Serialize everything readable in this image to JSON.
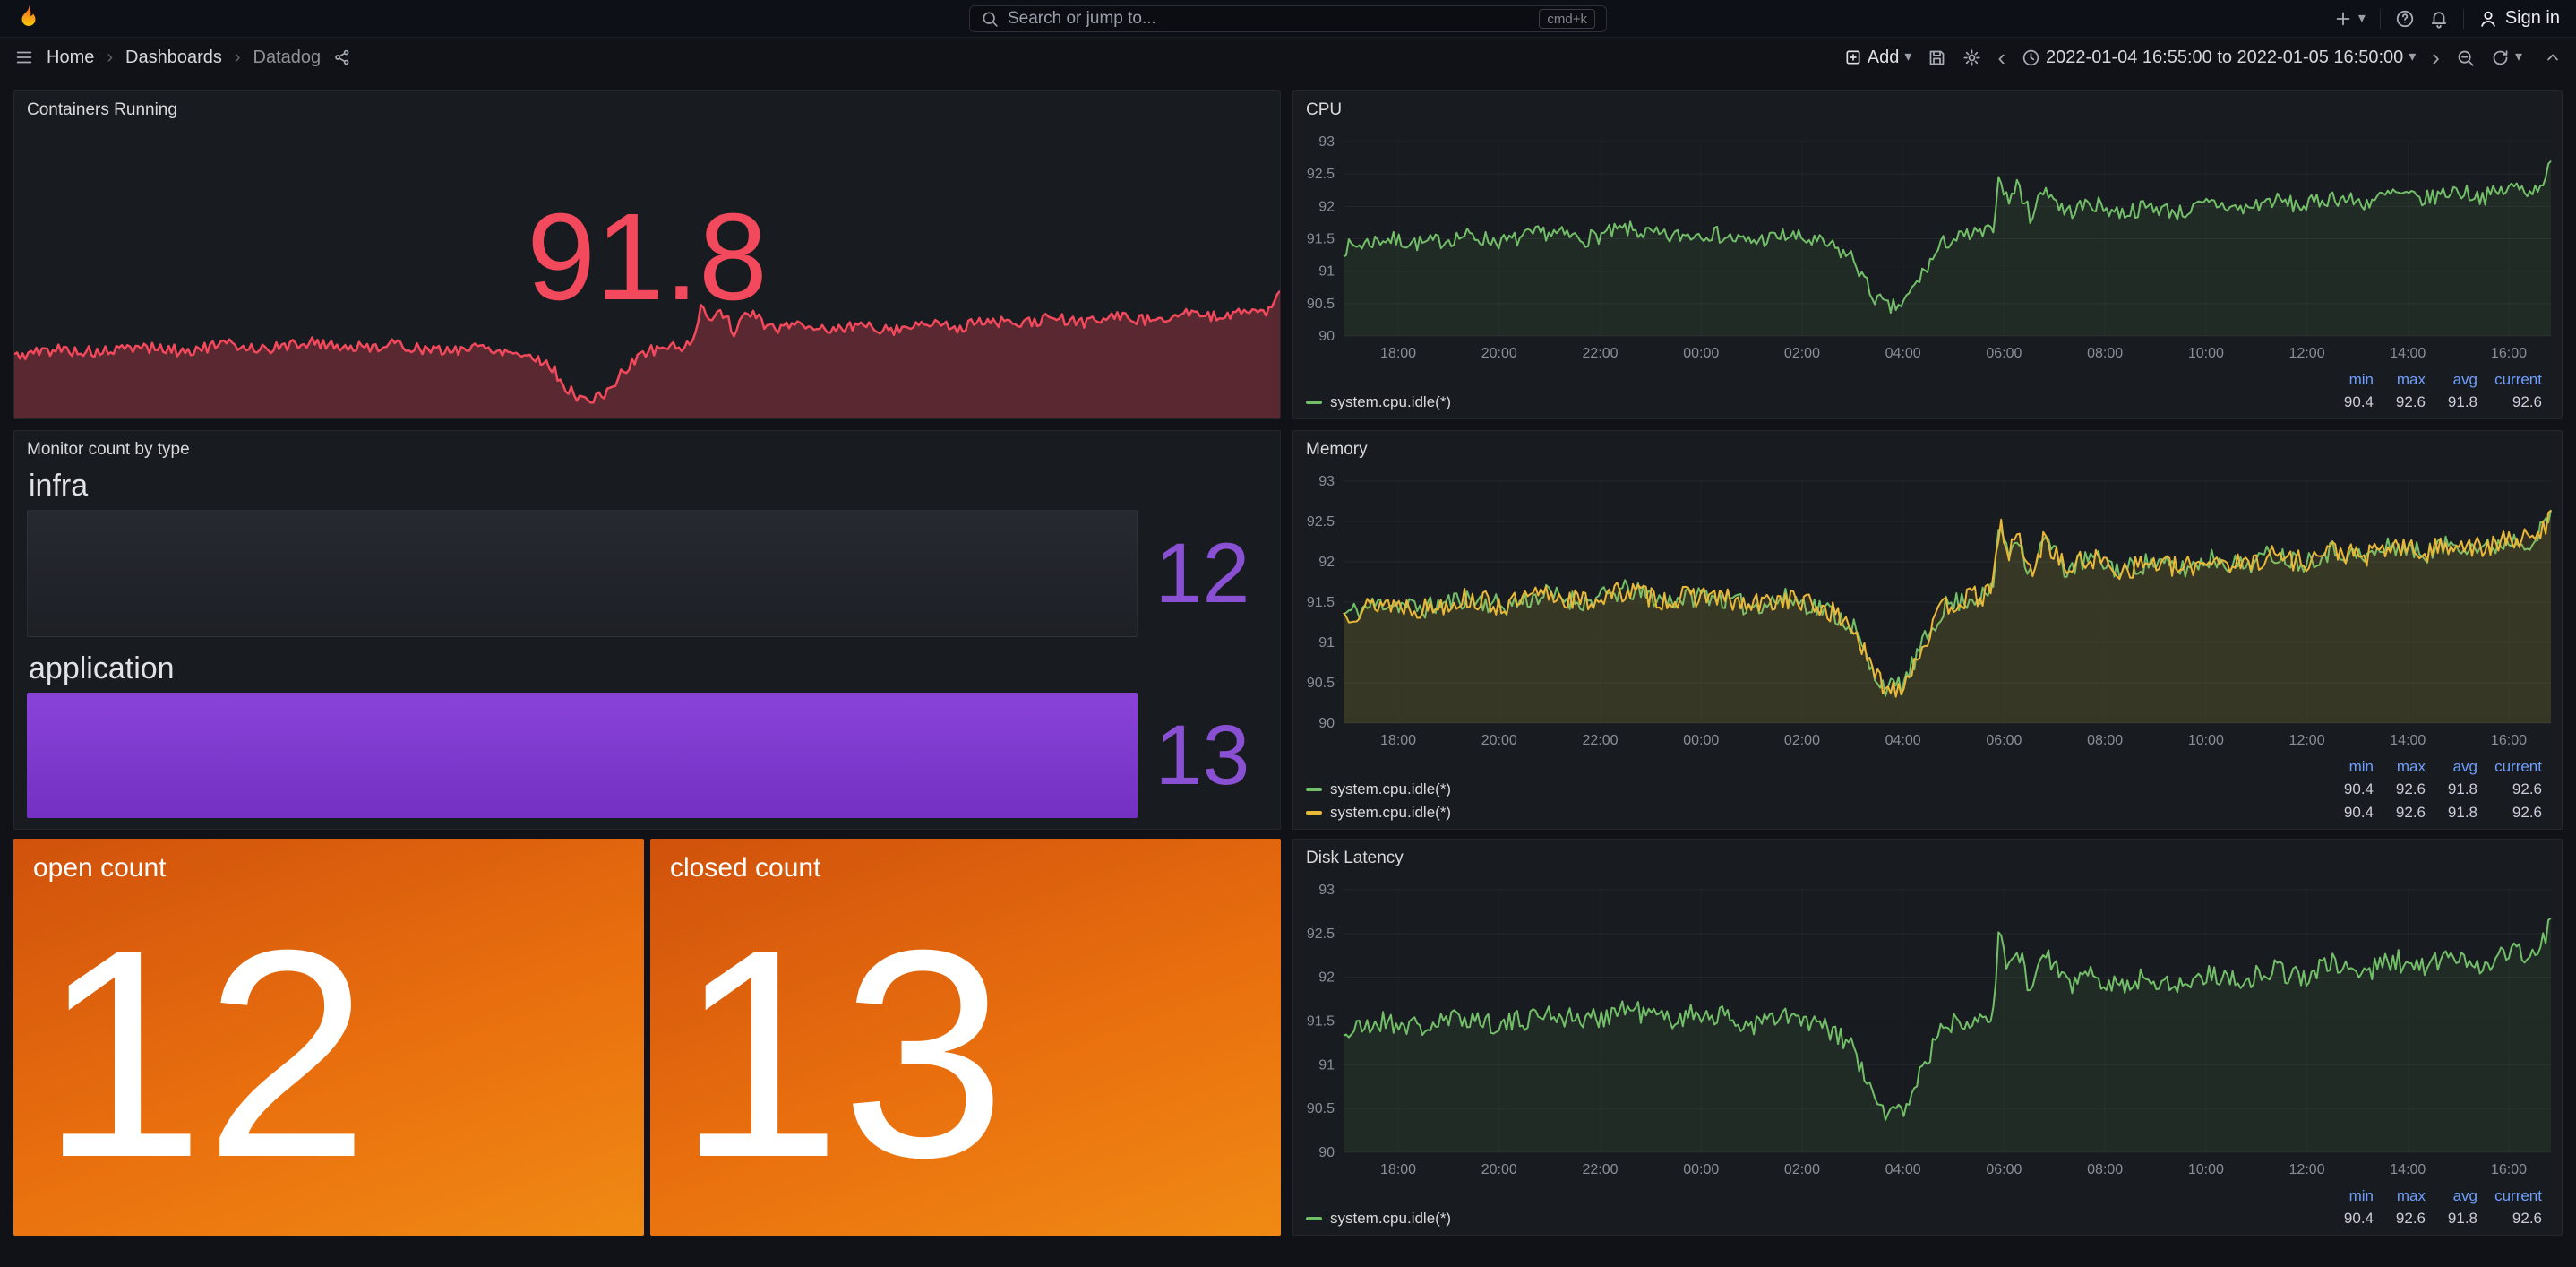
{
  "nav": {
    "search_placeholder": "Search or jump to...",
    "shortcut_badge": "cmd+k",
    "sign_in_label": "Sign in"
  },
  "icons": {
    "caret_down": "▾",
    "chevron_left": "‹",
    "chevron_right": "›",
    "breadcrumb_separator": "›"
  },
  "breadcrumb": {
    "items": [
      "Home",
      "Dashboards",
      "Datadog"
    ]
  },
  "toolbar": {
    "add_label": "Add",
    "time_range": "2022-01-04 16:55:00 to 2022-01-05 16:50:00"
  },
  "legend": {
    "headers": [
      "min",
      "max",
      "avg",
      "current"
    ]
  },
  "panels": {
    "containers": {
      "title": "Containers Running",
      "value": "91.8",
      "value_color": "#F2495C"
    },
    "monitor": {
      "title": "Monitor count by type",
      "value_color": "#8A50D3",
      "bar_fill": "#7E3ACD",
      "bar_track": "#212429",
      "rows": [
        {
          "label": "infra",
          "value": "12",
          "filled": false
        },
        {
          "label": "application",
          "value": "13",
          "filled": true
        }
      ]
    },
    "open": {
      "title": "open count",
      "value": "12"
    },
    "closed": {
      "title": "closed count",
      "value": "13"
    },
    "cpu": {
      "title": "CPU",
      "legend_rows": [
        {
          "name": "system.cpu.idle(*)",
          "color": "#73BF69",
          "values": [
            "90.4",
            "92.6",
            "91.8",
            "92.6"
          ]
        }
      ]
    },
    "memory": {
      "title": "Memory",
      "legend_rows": [
        {
          "name": "system.cpu.idle(*)",
          "color": "#73BF69",
          "values": [
            "90.4",
            "92.6",
            "91.8",
            "92.6"
          ]
        },
        {
          "name": "system.cpu.idle(*)",
          "color": "#EAB839",
          "values": [
            "90.4",
            "92.6",
            "91.8",
            "92.6"
          ]
        }
      ]
    },
    "disk": {
      "title": "Disk Latency",
      "legend_rows": [
        {
          "name": "system.cpu.idle(*)",
          "color": "#73BF69",
          "values": [
            "90.4",
            "92.6",
            "91.8",
            "92.6"
          ]
        }
      ]
    }
  },
  "series_shape_keyframes": [
    [
      0,
      91.35
    ],
    [
      0.8,
      91.5
    ],
    [
      1.6,
      91.42
    ],
    [
      2.4,
      91.55
    ],
    [
      3.2,
      91.45
    ],
    [
      4,
      91.6
    ],
    [
      4.8,
      91.5
    ],
    [
      5.6,
      91.65
    ],
    [
      6.4,
      91.52
    ],
    [
      7.2,
      91.6
    ],
    [
      8,
      91.45
    ],
    [
      8.8,
      91.55
    ],
    [
      9.6,
      91.4
    ],
    [
      10.1,
      91.2
    ],
    [
      10.45,
      90.65
    ],
    [
      10.8,
      90.42
    ],
    [
      11.1,
      90.5
    ],
    [
      11.5,
      91.0
    ],
    [
      11.9,
      91.45
    ],
    [
      12.4,
      91.55
    ],
    [
      12.85,
      91.6
    ],
    [
      13,
      92.55
    ],
    [
      13.15,
      92.05
    ],
    [
      13.35,
      92.35
    ],
    [
      13.6,
      91.85
    ],
    [
      13.9,
      92.3
    ],
    [
      14.3,
      91.9
    ],
    [
      14.8,
      92.05
    ],
    [
      15.4,
      91.9
    ],
    [
      16,
      92.0
    ],
    [
      16.6,
      91.9
    ],
    [
      17.2,
      92.05
    ],
    [
      17.8,
      91.95
    ],
    [
      18.4,
      92.1
    ],
    [
      19,
      92.0
    ],
    [
      19.6,
      92.15
    ],
    [
      20.2,
      92.05
    ],
    [
      20.8,
      92.2
    ],
    [
      21.4,
      92.1
    ],
    [
      22,
      92.25
    ],
    [
      22.6,
      92.15
    ],
    [
      23.2,
      92.3
    ],
    [
      23.6,
      92.25
    ],
    [
      23.9167,
      92.6
    ]
  ],
  "chart_data": [
    {
      "id": "containers-spark",
      "type": "area",
      "title": "Containers Running",
      "axes": false,
      "hours": 23.9167,
      "ylim": [
        90.05,
        92.95
      ],
      "series": [
        {
          "name": "containers running",
          "color": "#F2495C",
          "fill": "rgba(242,73,92,0.30)",
          "seed": 5,
          "noise": 0.12,
          "width": 2.5
        }
      ]
    },
    {
      "id": "cpu-chart",
      "type": "line",
      "title": "CPU",
      "axes": true,
      "hours": 23.9167,
      "ylim": [
        90,
        93
      ],
      "y_ticks": [
        90,
        90.5,
        91,
        91.5,
        92,
        92.5,
        93
      ],
      "x_tick_start": 1.0833,
      "x_tick_step": 2,
      "x_tick_labels": [
        "18:00",
        "20:00",
        "22:00",
        "00:00",
        "02:00",
        "04:00",
        "06:00",
        "08:00",
        "10:00",
        "12:00",
        "14:00",
        "16:00"
      ],
      "legend_position": "bottom",
      "series": [
        {
          "name": "system.cpu.idle(*)",
          "color": "#73BF69",
          "fill": "rgba(115,191,105,0.10)",
          "seed": 7,
          "noise": 0.13,
          "width": 2,
          "stats": {
            "min": 90.4,
            "max": 92.6,
            "avg": 91.8,
            "current": 92.6
          }
        }
      ]
    },
    {
      "id": "memory-chart",
      "type": "line",
      "title": "Memory",
      "axes": true,
      "hours": 23.9167,
      "ylim": [
        90,
        93
      ],
      "y_ticks": [
        90,
        90.5,
        91,
        91.5,
        92,
        92.5,
        93
      ],
      "x_tick_start": 1.0833,
      "x_tick_step": 2,
      "x_tick_labels": [
        "18:00",
        "20:00",
        "22:00",
        "00:00",
        "02:00",
        "04:00",
        "06:00",
        "08:00",
        "10:00",
        "12:00",
        "14:00",
        "16:00"
      ],
      "legend_position": "bottom",
      "series": [
        {
          "name": "system.cpu.idle(*)",
          "color": "#73BF69",
          "fill": "rgba(115,191,105,0.07)",
          "seed": 11,
          "noise": 0.13,
          "width": 2,
          "stats": {
            "min": 90.4,
            "max": 92.6,
            "avg": 91.8,
            "current": 92.6
          }
        },
        {
          "name": "system.cpu.idle(*)",
          "color": "#EAB839",
          "fill": "rgba(234,184,57,0.12)",
          "seed": 13,
          "noise": 0.14,
          "width": 2,
          "stats": {
            "min": 90.4,
            "max": 92.6,
            "avg": 91.8,
            "current": 92.6
          }
        }
      ]
    },
    {
      "id": "disk-chart",
      "type": "line",
      "title": "Disk Latency",
      "axes": true,
      "hours": 23.9167,
      "ylim": [
        90,
        93
      ],
      "y_ticks": [
        90,
        90.5,
        91,
        91.5,
        92,
        92.5,
        93
      ],
      "x_tick_start": 1.0833,
      "x_tick_step": 2,
      "x_tick_labels": [
        "18:00",
        "20:00",
        "22:00",
        "00:00",
        "02:00",
        "04:00",
        "06:00",
        "08:00",
        "10:00",
        "12:00",
        "14:00",
        "16:00"
      ],
      "legend_position": "bottom",
      "series": [
        {
          "name": "system.cpu.idle(*)",
          "color": "#73BF69",
          "fill": "rgba(115,191,105,0.10)",
          "seed": 21,
          "noise": 0.13,
          "width": 2,
          "stats": {
            "min": 90.4,
            "max": 92.6,
            "avg": 91.8,
            "current": 92.6
          }
        }
      ]
    }
  ]
}
